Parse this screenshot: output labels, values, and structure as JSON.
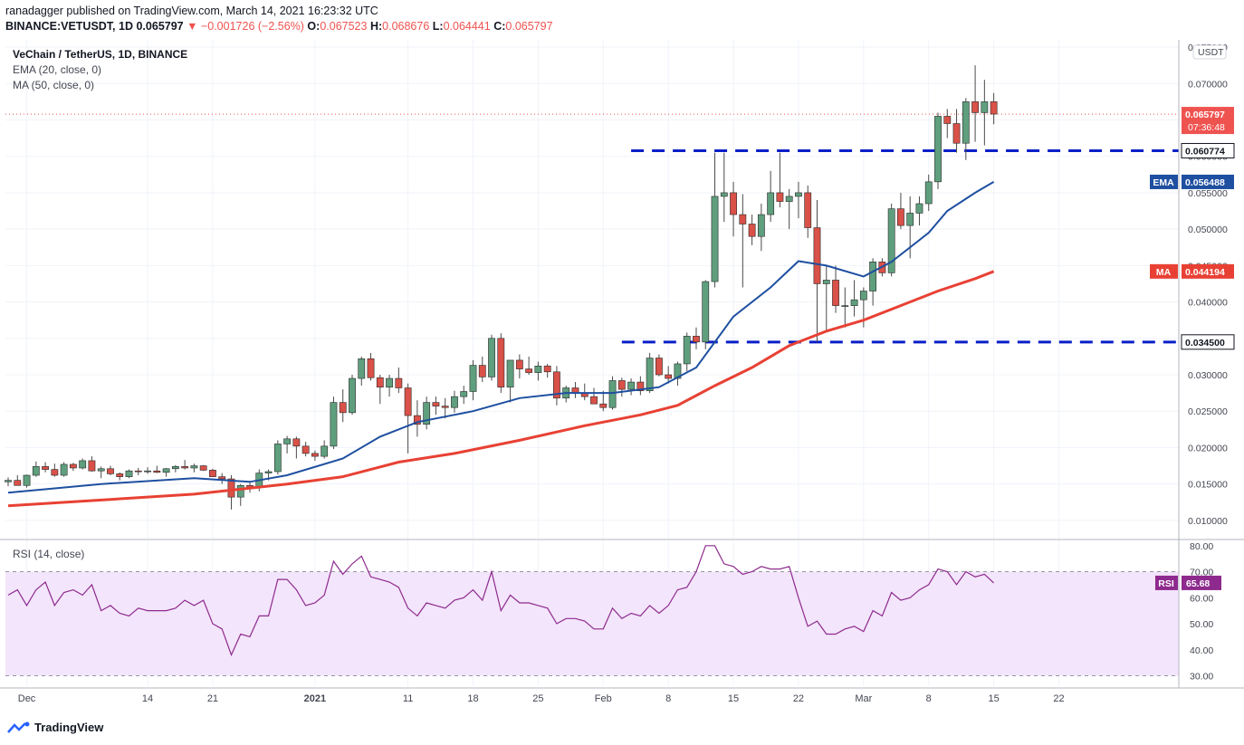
{
  "header": {
    "line1": "ranadagger published on TradingView.com, March 14, 2021 16:23:32 UTC",
    "symbol": "BINANCE:VETUSDT, 1D",
    "price": "0.065797",
    "change": "▼ −0.001726 (−2.56%)",
    "o_label": "O:",
    "o": "0.067523",
    "h_label": "H:",
    "h": "0.068676",
    "l_label": "L:",
    "l": "0.064441",
    "c_label": "C:",
    "c": "0.065797"
  },
  "legend": {
    "title": "VeChain / TetherUS, 1D, BINANCE",
    "ema": "EMA (20, close, 0)",
    "ma": "MA (50, close, 0)",
    "rsi": "RSI (14, close)"
  },
  "footer": {
    "brand": "TradingView"
  },
  "colors": {
    "up": "#26a69a",
    "up_body": "#5f9f7e",
    "down": "#ef5350",
    "down_body": "#d95148",
    "ema": "#1e4fa0",
    "ma": "#e84134",
    "rsi": "#8e2a8e",
    "level": "#0a1fc8"
  },
  "chart_data": {
    "type": "candlestick",
    "currency_label": "USDT",
    "x_ticks": [
      {
        "d": 2,
        "t": "Dec"
      },
      {
        "d": 15,
        "t": "14"
      },
      {
        "d": 22,
        "t": "21"
      },
      {
        "d": 33,
        "t": "2021"
      },
      {
        "d": 43,
        "t": "11"
      },
      {
        "d": 50,
        "t": "18"
      },
      {
        "d": 57,
        "t": "25"
      },
      {
        "d": 64,
        "t": "Feb"
      },
      {
        "d": 71,
        "t": "8"
      },
      {
        "d": 78,
        "t": "15"
      },
      {
        "d": 85,
        "t": "22"
      },
      {
        "d": 92,
        "t": "Mar"
      },
      {
        "d": 99,
        "t": "8"
      },
      {
        "d": 106,
        "t": "15"
      },
      {
        "d": 113,
        "t": "22"
      }
    ],
    "y_ticks": [
      "0.075000",
      "0.070000",
      "0.065000",
      "0.060000",
      "0.055000",
      "0.050000",
      "0.045000",
      "0.040000",
      "0.035000",
      "0.030000",
      "0.025000",
      "0.020000",
      "0.015000",
      "0.010000"
    ],
    "y_range": [
      0.0075,
      0.076
    ],
    "ohlc": [
      [
        0.0153,
        0.0159,
        0.0147,
        0.0155
      ],
      [
        0.0155,
        0.0162,
        0.0148,
        0.0148
      ],
      [
        0.0148,
        0.0163,
        0.0145,
        0.0162
      ],
      [
        0.0162,
        0.0181,
        0.016,
        0.0174
      ],
      [
        0.0174,
        0.018,
        0.0166,
        0.017
      ],
      [
        0.017,
        0.0178,
        0.016,
        0.0162
      ],
      [
        0.0162,
        0.018,
        0.016,
        0.0177
      ],
      [
        0.0177,
        0.0179,
        0.0168,
        0.0172
      ],
      [
        0.0172,
        0.0185,
        0.017,
        0.0182
      ],
      [
        0.0182,
        0.0188,
        0.0167,
        0.0168
      ],
      [
        0.0168,
        0.0174,
        0.0158,
        0.0171
      ],
      [
        0.0171,
        0.0175,
        0.0162,
        0.0164
      ],
      [
        0.0164,
        0.0166,
        0.0155,
        0.016
      ],
      [
        0.016,
        0.017,
        0.0158,
        0.0168
      ],
      [
        0.0168,
        0.0172,
        0.0162,
        0.0167
      ],
      [
        0.0167,
        0.0173,
        0.0164,
        0.0168
      ],
      [
        0.0168,
        0.0175,
        0.0165,
        0.0166
      ],
      [
        0.0166,
        0.0172,
        0.016,
        0.0171
      ],
      [
        0.0171,
        0.0176,
        0.0166,
        0.0174
      ],
      [
        0.0174,
        0.0183,
        0.017,
        0.0172
      ],
      [
        0.0172,
        0.0178,
        0.0166,
        0.0175
      ],
      [
        0.0175,
        0.0176,
        0.0168,
        0.0169
      ],
      [
        0.0169,
        0.0171,
        0.016,
        0.016
      ],
      [
        0.016,
        0.0165,
        0.015,
        0.0157
      ],
      [
        0.0157,
        0.0162,
        0.0115,
        0.0132
      ],
      [
        0.0132,
        0.015,
        0.012,
        0.0148
      ],
      [
        0.0148,
        0.0152,
        0.0138,
        0.0145
      ],
      [
        0.0145,
        0.017,
        0.014,
        0.0165
      ],
      [
        0.0165,
        0.017,
        0.0155,
        0.0167
      ],
      [
        0.0167,
        0.021,
        0.0163,
        0.0205
      ],
      [
        0.0205,
        0.0216,
        0.0192,
        0.0212
      ],
      [
        0.0212,
        0.0215,
        0.0185,
        0.0202
      ],
      [
        0.0202,
        0.0208,
        0.0188,
        0.0192
      ],
      [
        0.0192,
        0.0196,
        0.0182,
        0.0188
      ],
      [
        0.0188,
        0.021,
        0.0185,
        0.0202
      ],
      [
        0.0202,
        0.027,
        0.0198,
        0.0262
      ],
      [
        0.0262,
        0.028,
        0.0235,
        0.0248
      ],
      [
        0.0248,
        0.03,
        0.0245,
        0.0295
      ],
      [
        0.0295,
        0.0325,
        0.0285,
        0.0322
      ],
      [
        0.0322,
        0.033,
        0.0292,
        0.0296
      ],
      [
        0.0296,
        0.03,
        0.026,
        0.0283
      ],
      [
        0.0283,
        0.03,
        0.027,
        0.0295
      ],
      [
        0.0295,
        0.031,
        0.0275,
        0.0282
      ],
      [
        0.0282,
        0.0288,
        0.0192,
        0.0244
      ],
      [
        0.0244,
        0.0265,
        0.0215,
        0.0232
      ],
      [
        0.0232,
        0.027,
        0.0225,
        0.0262
      ],
      [
        0.0262,
        0.027,
        0.0245,
        0.0257
      ],
      [
        0.0257,
        0.0268,
        0.024,
        0.0255
      ],
      [
        0.0255,
        0.0278,
        0.0248,
        0.027
      ],
      [
        0.027,
        0.0285,
        0.026,
        0.0277
      ],
      [
        0.0277,
        0.032,
        0.0265,
        0.0313
      ],
      [
        0.0313,
        0.0325,
        0.029,
        0.0297
      ],
      [
        0.0297,
        0.0355,
        0.0292,
        0.035
      ],
      [
        0.035,
        0.0357,
        0.0275,
        0.0283
      ],
      [
        0.0283,
        0.032,
        0.0262,
        0.032
      ],
      [
        0.032,
        0.0328,
        0.0295,
        0.0308
      ],
      [
        0.0308,
        0.0325,
        0.03,
        0.0303
      ],
      [
        0.0303,
        0.0318,
        0.0292,
        0.0312
      ],
      [
        0.0312,
        0.0315,
        0.0296,
        0.0304
      ],
      [
        0.0304,
        0.0312,
        0.0258,
        0.0268
      ],
      [
        0.0268,
        0.0285,
        0.0262,
        0.0282
      ],
      [
        0.0282,
        0.029,
        0.0268,
        0.0275
      ],
      [
        0.0275,
        0.0288,
        0.0265,
        0.027
      ],
      [
        0.027,
        0.0282,
        0.026,
        0.026
      ],
      [
        0.026,
        0.0278,
        0.025,
        0.0255
      ],
      [
        0.0255,
        0.0298,
        0.0252,
        0.0292
      ],
      [
        0.0292,
        0.0296,
        0.027,
        0.028
      ],
      [
        0.028,
        0.0295,
        0.0272,
        0.029
      ],
      [
        0.029,
        0.0298,
        0.0272,
        0.0278
      ],
      [
        0.0278,
        0.033,
        0.0275,
        0.0323
      ],
      [
        0.0323,
        0.0328,
        0.0298,
        0.03
      ],
      [
        0.03,
        0.0312,
        0.0288,
        0.0295
      ],
      [
        0.0295,
        0.0318,
        0.0285,
        0.0315
      ],
      [
        0.0315,
        0.0358,
        0.0305,
        0.0353
      ],
      [
        0.0353,
        0.0365,
        0.0335,
        0.0345
      ],
      [
        0.0345,
        0.043,
        0.0335,
        0.0428
      ],
      [
        0.0428,
        0.0605,
        0.042,
        0.0545
      ],
      [
        0.0545,
        0.0605,
        0.051,
        0.055
      ],
      [
        0.055,
        0.0565,
        0.049,
        0.052
      ],
      [
        0.052,
        0.0548,
        0.042,
        0.0507
      ],
      [
        0.0507,
        0.052,
        0.0478,
        0.049
      ],
      [
        0.049,
        0.0535,
        0.047,
        0.052
      ],
      [
        0.052,
        0.058,
        0.051,
        0.055
      ],
      [
        0.055,
        0.0605,
        0.053,
        0.0538
      ],
      [
        0.0538,
        0.0555,
        0.05,
        0.0545
      ],
      [
        0.0545,
        0.0565,
        0.0515,
        0.055
      ],
      [
        0.055,
        0.056,
        0.0488,
        0.0502
      ],
      [
        0.0502,
        0.054,
        0.0345,
        0.0425
      ],
      [
        0.0425,
        0.045,
        0.036,
        0.043
      ],
      [
        0.043,
        0.045,
        0.0385,
        0.0395
      ],
      [
        0.0395,
        0.042,
        0.0365,
        0.0395
      ],
      [
        0.0395,
        0.043,
        0.038,
        0.0403
      ],
      [
        0.0403,
        0.042,
        0.0365,
        0.0415
      ],
      [
        0.0415,
        0.046,
        0.0395,
        0.0455
      ],
      [
        0.0455,
        0.046,
        0.0435,
        0.044
      ],
      [
        0.044,
        0.0535,
        0.0435,
        0.0528
      ],
      [
        0.0528,
        0.055,
        0.05,
        0.0505
      ],
      [
        0.0505,
        0.0545,
        0.046,
        0.0522
      ],
      [
        0.0522,
        0.0545,
        0.0505,
        0.0535
      ],
      [
        0.0535,
        0.0575,
        0.0525,
        0.0565
      ],
      [
        0.0565,
        0.066,
        0.0555,
        0.0655
      ],
      [
        0.0655,
        0.0665,
        0.0625,
        0.0645
      ],
      [
        0.0645,
        0.0665,
        0.0605,
        0.0618
      ],
      [
        0.0618,
        0.068,
        0.0595,
        0.0675
      ],
      [
        0.0675,
        0.0725,
        0.062,
        0.066
      ],
      [
        0.066,
        0.0705,
        0.0615,
        0.0675
      ],
      [
        0.0675,
        0.0687,
        0.0644,
        0.0658
      ]
    ],
    "series": [
      {
        "name": "EMA (20, close, 0)",
        "current": "0.056488",
        "tag": "EMA"
      },
      {
        "name": "MA (50, close, 0)",
        "current": "0.044194",
        "tag": "MA"
      }
    ],
    "ema_path": [
      [
        0,
        0.0138
      ],
      [
        10,
        0.015
      ],
      [
        20,
        0.0158
      ],
      [
        26,
        0.0153
      ],
      [
        30,
        0.0162
      ],
      [
        36,
        0.0185
      ],
      [
        40,
        0.0215
      ],
      [
        44,
        0.0235
      ],
      [
        50,
        0.025
      ],
      [
        55,
        0.0268
      ],
      [
        60,
        0.0275
      ],
      [
        65,
        0.0275
      ],
      [
        70,
        0.0283
      ],
      [
        74,
        0.031
      ],
      [
        78,
        0.038
      ],
      [
        82,
        0.042
      ],
      [
        85,
        0.0456
      ],
      [
        88,
        0.045
      ],
      [
        92,
        0.0435
      ],
      [
        95,
        0.0455
      ],
      [
        99,
        0.0495
      ],
      [
        101,
        0.0525
      ],
      [
        104,
        0.055
      ],
      [
        106,
        0.0565
      ]
    ],
    "ma_path": [
      [
        0,
        0.012
      ],
      [
        10,
        0.0128
      ],
      [
        20,
        0.0136
      ],
      [
        30,
        0.015
      ],
      [
        36,
        0.016
      ],
      [
        42,
        0.018
      ],
      [
        48,
        0.0192
      ],
      [
        55,
        0.021
      ],
      [
        62,
        0.023
      ],
      [
        68,
        0.0245
      ],
      [
        72,
        0.0258
      ],
      [
        76,
        0.0285
      ],
      [
        80,
        0.031
      ],
      [
        84,
        0.034
      ],
      [
        88,
        0.036
      ],
      [
        92,
        0.0375
      ],
      [
        96,
        0.0395
      ],
      [
        100,
        0.0415
      ],
      [
        104,
        0.0432
      ],
      [
        106,
        0.0442
      ]
    ],
    "levels": [
      {
        "value": 0.060774,
        "label": "0.060774",
        "from": 67,
        "to": 114
      },
      {
        "value": 0.0345,
        "label": "0.034500",
        "from": 66,
        "to": 114
      }
    ],
    "last_price_label": "0.065797",
    "countdown": "07:36:48",
    "rsi": {
      "current": "65.68",
      "tag": "RSI",
      "y_ticks": [
        "80.00",
        "70.00",
        "60.00",
        "50.00",
        "40.00",
        "30.00"
      ],
      "bands": [
        30,
        70
      ],
      "y_range": [
        26,
        82
      ],
      "values": [
        61,
        63,
        57,
        63,
        66,
        57,
        62,
        63,
        61,
        65,
        55,
        57,
        54,
        53,
        56,
        55,
        55,
        55,
        56,
        59,
        57,
        59,
        50,
        48,
        38,
        46,
        45,
        53,
        53,
        67,
        67,
        63,
        57,
        58,
        61,
        74,
        69,
        73,
        76,
        68,
        67,
        66,
        64,
        56,
        53,
        58,
        57,
        56,
        59,
        60,
        63,
        59,
        70,
        55,
        61,
        58,
        58,
        57,
        56,
        50,
        52,
        52,
        51,
        48,
        48,
        56,
        52,
        54,
        53,
        57,
        54,
        57,
        63,
        64,
        70,
        80,
        80,
        73,
        72,
        69,
        70,
        72,
        71,
        71,
        72,
        60,
        49,
        51,
        46,
        46,
        48,
        49,
        47,
        55,
        53,
        62,
        59,
        60,
        63,
        65,
        71,
        70,
        65,
        70,
        68,
        69,
        65.68
      ]
    }
  }
}
